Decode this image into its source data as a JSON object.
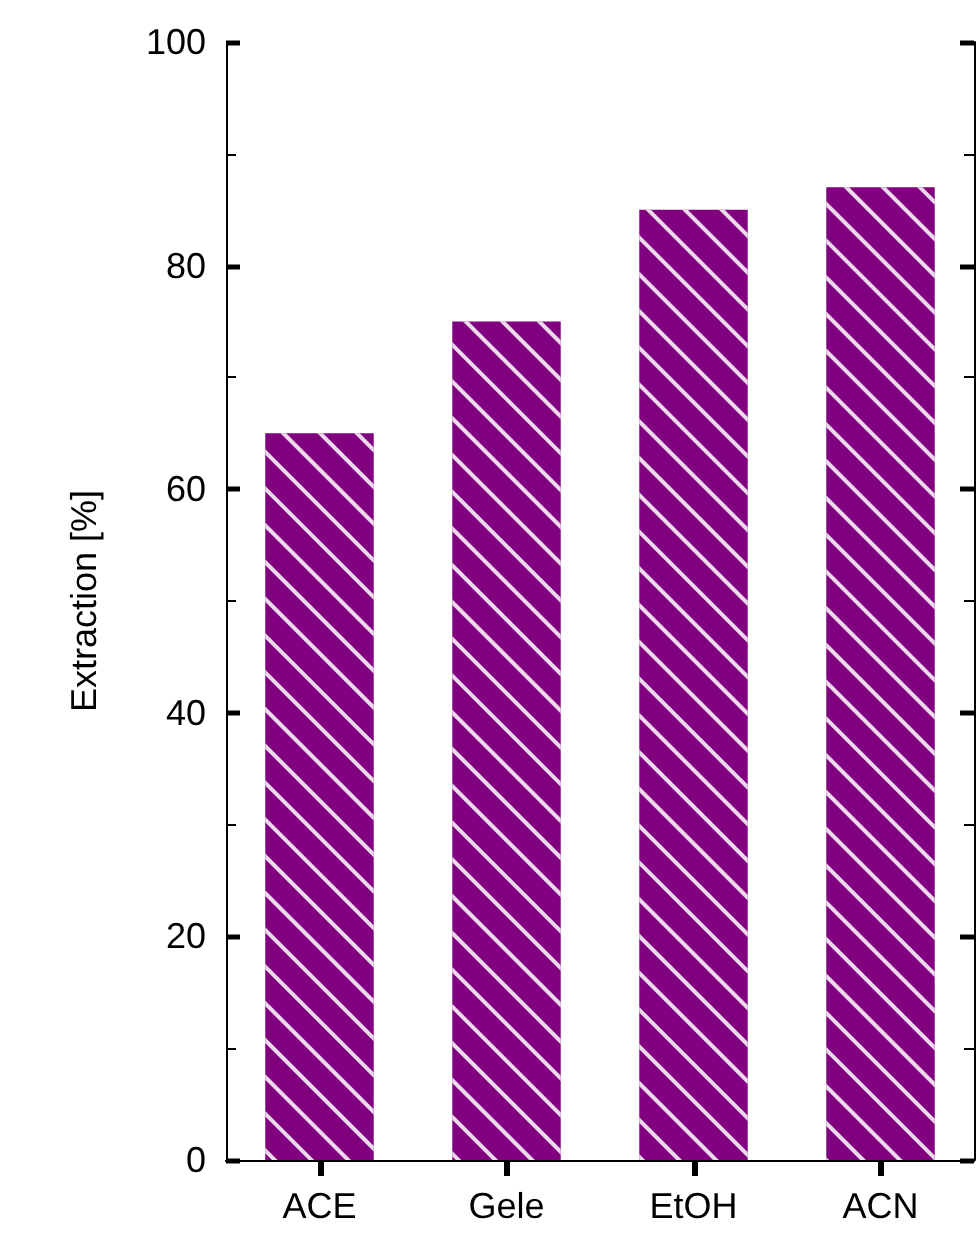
{
  "chart_data": {
    "type": "bar",
    "ylabel": "Extraction [%]",
    "categories": [
      "ACE",
      "Gele",
      "EtOH",
      "ACN"
    ],
    "values": [
      65,
      75,
      85,
      87
    ],
    "color": "#800080",
    "ylim": [
      0,
      100
    ],
    "yticks": [
      0,
      20,
      40,
      60,
      80,
      100
    ],
    "grid": false
  }
}
